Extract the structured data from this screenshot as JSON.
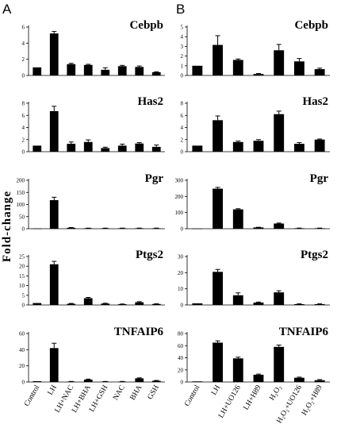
{
  "figure": {
    "ylabel": "Fold-change"
  },
  "panels": [
    {
      "label": "A",
      "categories": [
        "Control",
        "LH",
        "LH+NAC",
        "LH+BHA",
        "LH+GSH",
        "NAC",
        "BHA",
        "GSH"
      ]
    },
    {
      "label": "B",
      "categories": [
        "Control",
        "LH",
        "LH+UO126",
        "LH+H89",
        "H2O2",
        "H2O2+UO126",
        "H2O2+H89"
      ]
    }
  ],
  "chart_data": [
    {
      "type": "bar",
      "panel": "A",
      "title": "Cebpb",
      "ylim": [
        0,
        6
      ],
      "yticks": [
        0,
        2,
        4,
        6
      ],
      "categories": [
        "Control",
        "LH",
        "LH+NAC",
        "LH+BHA",
        "LH+GSH",
        "NAC",
        "BHA",
        "GSH"
      ],
      "values": [
        1.0,
        5.2,
        1.4,
        1.3,
        0.7,
        1.15,
        1.05,
        0.4
      ],
      "errors": [
        0,
        0.25,
        0.1,
        0.08,
        0.25,
        0.1,
        0.12,
        0.05
      ]
    },
    {
      "type": "bar",
      "panel": "A",
      "title": "Has2",
      "ylim": [
        0,
        8
      ],
      "yticks": [
        0,
        2,
        4,
        6,
        8
      ],
      "categories": [
        "Control",
        "LH",
        "LH+NAC",
        "LH+BHA",
        "LH+GSH",
        "NAC",
        "BHA",
        "GSH"
      ],
      "values": [
        1.0,
        6.7,
        1.3,
        1.6,
        0.6,
        1.0,
        1.35,
        0.8
      ],
      "errors": [
        0,
        0.8,
        0.3,
        0.35,
        0.15,
        0.25,
        0.15,
        0.3
      ]
    },
    {
      "type": "bar",
      "panel": "A",
      "title": "Pgr",
      "ylim": [
        0,
        200
      ],
      "yticks": [
        0,
        50,
        100,
        150,
        200
      ],
      "categories": [
        "Control",
        "LH",
        "LH+NAC",
        "LH+BHA",
        "LH+GSH",
        "NAC",
        "BHA",
        "GSH"
      ],
      "values": [
        1,
        118,
        4,
        2,
        2,
        2,
        2,
        2
      ],
      "errors": [
        0,
        12,
        1,
        0.5,
        0.5,
        0.5,
        0.5,
        0.5
      ]
    },
    {
      "type": "bar",
      "panel": "A",
      "title": "Ptgs2",
      "ylim": [
        0,
        25
      ],
      "yticks": [
        0,
        5,
        10,
        15,
        20,
        25
      ],
      "categories": [
        "Control",
        "LH",
        "LH+NAC",
        "LH+BHA",
        "LH+GSH",
        "NAC",
        "BHA",
        "GSH"
      ],
      "values": [
        1.0,
        21.0,
        0.6,
        3.5,
        0.7,
        0.4,
        1.4,
        0.5
      ],
      "errors": [
        0,
        1.5,
        0.2,
        0.4,
        0.2,
        0.1,
        0.3,
        0.1
      ]
    },
    {
      "type": "bar",
      "panel": "A",
      "title": "TNFAIP6",
      "ylim": [
        0,
        60
      ],
      "yticks": [
        0,
        20,
        40,
        60
      ],
      "categories": [
        "Control",
        "LH",
        "LH+NAC",
        "LH+BHA",
        "LH+GSH",
        "NAC",
        "BHA",
        "GSH"
      ],
      "values": [
        1,
        42,
        0.5,
        3,
        0.5,
        0.5,
        4.5,
        1.5
      ],
      "errors": [
        0,
        6,
        0.2,
        0.6,
        0.2,
        0.2,
        0.6,
        0.4
      ]
    },
    {
      "type": "bar",
      "panel": "B",
      "title": "Cebpb",
      "ylim": [
        0,
        5
      ],
      "yticks": [
        0,
        1,
        2,
        3,
        4,
        5
      ],
      "categories": [
        "Control",
        "LH",
        "LH+UO126",
        "LH+H89",
        "H2O2",
        "H2O2+UO126",
        "H2O2+H89"
      ],
      "values": [
        1.0,
        3.15,
        1.6,
        0.15,
        2.6,
        1.45,
        0.65
      ],
      "errors": [
        0,
        0.95,
        0.1,
        0.05,
        0.6,
        0.3,
        0.1
      ]
    },
    {
      "type": "bar",
      "panel": "B",
      "title": "Has2",
      "ylim": [
        0,
        8
      ],
      "yticks": [
        0,
        2,
        4,
        6,
        8
      ],
      "categories": [
        "Control",
        "LH",
        "LH+UO126",
        "LH+H89",
        "H2O2",
        "H2O2+UO126",
        "H2O2+H89"
      ],
      "values": [
        1.0,
        5.2,
        1.6,
        1.8,
        6.2,
        1.3,
        2.0
      ],
      "errors": [
        0,
        0.7,
        0.15,
        0.2,
        0.5,
        0.2,
        0.1
      ]
    },
    {
      "type": "bar",
      "panel": "B",
      "title": "Pgr",
      "ylim": [
        0,
        300
      ],
      "yticks": [
        0,
        100,
        200,
        300
      ],
      "categories": [
        "Control",
        "LH",
        "LH+UO126",
        "LH+H89",
        "H2O2",
        "H2O2+UO126",
        "H2O2+H89"
      ],
      "values": [
        1,
        248,
        120,
        8,
        32,
        3,
        3
      ],
      "errors": [
        0,
        8,
        4,
        1,
        3,
        1,
        1
      ]
    },
    {
      "type": "bar",
      "panel": "B",
      "title": "Ptgs2",
      "ylim": [
        0,
        30
      ],
      "yticks": [
        0,
        10,
        20,
        30
      ],
      "categories": [
        "Control",
        "LH",
        "LH+UO126",
        "LH+H89",
        "H2O2",
        "H2O2+UO126",
        "H2O2+H89"
      ],
      "values": [
        1.0,
        20.5,
        6.0,
        1.5,
        7.8,
        0.5,
        0.5
      ],
      "errors": [
        0,
        1.5,
        1.5,
        0.3,
        1.0,
        0.2,
        0.2
      ]
    },
    {
      "type": "bar",
      "panel": "B",
      "title": "TNFAIP6",
      "ylim": [
        0,
        80
      ],
      "yticks": [
        0,
        20,
        40,
        60,
        80
      ],
      "categories": [
        "Control",
        "LH",
        "LH+UO126",
        "LH+H89",
        "H2O2",
        "H2O2+UO126",
        "H2O2+H89"
      ],
      "values": [
        1,
        65,
        39,
        12,
        58,
        7,
        3
      ],
      "errors": [
        0,
        3,
        2,
        1,
        3,
        1,
        1
      ]
    }
  ]
}
